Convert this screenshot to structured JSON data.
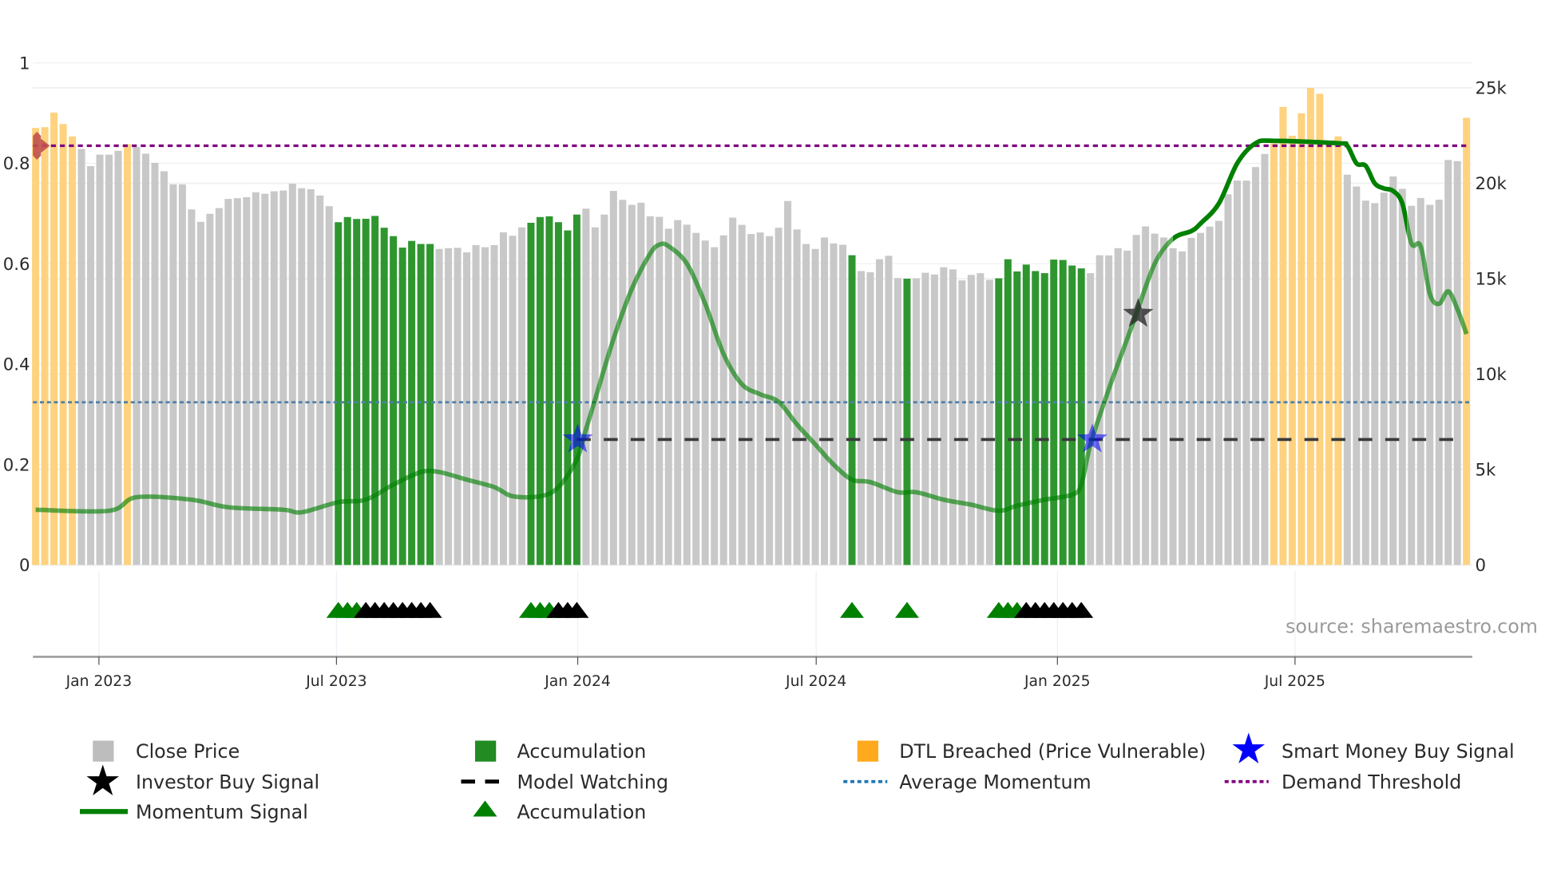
{
  "chart_data": {
    "type": "bar",
    "title": "",
    "left_axis": {
      "range": [
        0,
        1
      ],
      "ticks": [
        "0",
        "0.2",
        "0.4",
        "0.6",
        "0.8",
        "1"
      ],
      "tick_values": [
        0,
        0.2,
        0.4,
        0.6,
        0.8,
        1
      ]
    },
    "right_axis": {
      "range": [
        0,
        25
      ],
      "unit": "k",
      "ticks": [
        "0",
        "5k",
        "10k",
        "15k",
        "20k",
        "25k"
      ],
      "tick_values": [
        0,
        5,
        10,
        15,
        20,
        25
      ]
    },
    "x_axis": {
      "ticks": [
        {
          "label": "Jan 2023",
          "x": 7.9
        },
        {
          "label": "Jul 2023",
          "x": 33.8
        },
        {
          "label": "Jan 2024",
          "x": 60.1
        },
        {
          "label": "Jul 2024",
          "x": 86.1
        },
        {
          "label": "Jan 2025",
          "x": 112.4
        },
        {
          "label": "Jul 2025",
          "x": 138.3
        }
      ]
    },
    "close_price_k": [
      22.9,
      22.94,
      23.7,
      23.1,
      22.45,
      21.8,
      20.9,
      21.5,
      21.5,
      21.7,
      22.05,
      21.9,
      21.55,
      21.07,
      20.63,
      19.94,
      19.94,
      18.63,
      17.98,
      18.4,
      18.7,
      19.18,
      19.22,
      19.27,
      19.53,
      19.45,
      19.58,
      19.62,
      19.98,
      19.74,
      19.69,
      19.36,
      18.8,
      17.96,
      18.23,
      18.13,
      18.14,
      18.29,
      17.67,
      17.23,
      16.63,
      16.98,
      16.82,
      16.82,
      16.56,
      16.6,
      16.62,
      16.38,
      16.76,
      16.65,
      16.76,
      17.43,
      17.25,
      17.69,
      17.93,
      18.23,
      18.27,
      17.96,
      17.53,
      18.36,
      18.67,
      17.69,
      18.36,
      19.6,
      19.13,
      18.87,
      18.98,
      18.27,
      18.24,
      17.62,
      18.07,
      17.83,
      17.4,
      17.0,
      16.65,
      17.27,
      18.2,
      17.82,
      17.34,
      17.42,
      17.23,
      17.67,
      19.07,
      17.58,
      16.82,
      16.56,
      17.16,
      16.85,
      16.78,
      16.23,
      15.4,
      15.34,
      16.02,
      16.2,
      15.03,
      15.0,
      15.02,
      15.31,
      15.22,
      15.6,
      15.49,
      14.91,
      15.2,
      15.29,
      14.94,
      15.02,
      16.02,
      15.38,
      15.74,
      15.4,
      15.29,
      16.0,
      15.98,
      15.69,
      15.54,
      15.29,
      16.23,
      16.22,
      16.6,
      16.47,
      17.29,
      17.74,
      17.36,
      17.16,
      16.6,
      16.43,
      17.14,
      17.4,
      17.73,
      18.03,
      19.42,
      20.14,
      20.14,
      20.85,
      21.54,
      22.09,
      24.0,
      22.49,
      23.67,
      25.0,
      24.69,
      22.09,
      22.45,
      20.45,
      19.83,
      19.09,
      18.96,
      19.51,
      20.36,
      19.71,
      18.82,
      19.23,
      18.87,
      19.14,
      21.22,
      21.16,
      23.43
    ],
    "accumulation_bars": [
      34,
      35,
      36,
      37,
      38,
      39,
      40,
      41,
      42,
      43,
      44,
      55,
      56,
      57,
      58,
      59,
      60,
      90,
      96,
      106,
      107,
      108,
      109,
      110,
      111,
      112,
      113,
      114,
      115
    ],
    "dtl_breached_bars": [
      1,
      2,
      3,
      4,
      5,
      11,
      136,
      137,
      138,
      139,
      140,
      141,
      142,
      143,
      157
    ],
    "momentum_signal": [
      [
        1,
        0.11
      ],
      [
        9,
        0.108
      ],
      [
        12,
        0.135
      ],
      [
        18,
        0.13
      ],
      [
        22,
        0.115
      ],
      [
        28,
        0.11
      ],
      [
        30,
        0.105
      ],
      [
        34,
        0.125
      ],
      [
        37,
        0.13
      ],
      [
        40,
        0.16
      ],
      [
        43,
        0.185
      ],
      [
        45,
        0.185
      ],
      [
        48,
        0.17
      ],
      [
        51,
        0.155
      ],
      [
        53,
        0.137
      ],
      [
        56,
        0.137
      ],
      [
        58,
        0.155
      ],
      [
        60,
        0.21
      ],
      [
        61,
        0.27
      ],
      [
        62,
        0.33
      ],
      [
        64,
        0.45
      ],
      [
        66,
        0.55
      ],
      [
        68,
        0.62
      ],
      [
        69,
        0.638
      ],
      [
        70,
        0.635
      ],
      [
        72,
        0.6
      ],
      [
        74,
        0.52
      ],
      [
        76,
        0.42
      ],
      [
        78,
        0.36
      ],
      [
        80,
        0.34
      ],
      [
        82,
        0.325
      ],
      [
        84,
        0.28
      ],
      [
        86,
        0.24
      ],
      [
        88,
        0.2
      ],
      [
        90,
        0.17
      ],
      [
        92,
        0.165
      ],
      [
        95,
        0.145
      ],
      [
        97,
        0.145
      ],
      [
        100,
        0.13
      ],
      [
        103,
        0.12
      ],
      [
        106,
        0.108
      ],
      [
        108,
        0.118
      ],
      [
        111,
        0.13
      ],
      [
        114,
        0.14
      ],
      [
        115,
        0.16
      ],
      [
        116,
        0.24
      ],
      [
        118,
        0.35
      ],
      [
        120,
        0.45
      ],
      [
        121,
        0.5
      ],
      [
        123,
        0.6
      ],
      [
        125,
        0.65
      ],
      [
        127,
        0.665
      ],
      [
        128,
        0.68
      ],
      [
        130,
        0.72
      ],
      [
        132,
        0.8
      ],
      [
        134,
        0.84
      ],
      [
        136,
        0.845
      ],
      [
        143,
        0.84
      ],
      [
        144,
        0.835
      ],
      [
        145,
        0.8
      ],
      [
        146,
        0.795
      ],
      [
        147,
        0.76
      ],
      [
        148,
        0.75
      ],
      [
        149,
        0.745
      ],
      [
        150,
        0.72
      ],
      [
        151,
        0.64
      ],
      [
        152,
        0.635
      ],
      [
        153,
        0.54
      ],
      [
        154,
        0.52
      ],
      [
        155,
        0.545
      ],
      [
        156,
        0.51
      ],
      [
        157,
        0.46
      ]
    ],
    "average_momentum": 0.324,
    "demand_threshold": 0.835,
    "model_watching": {
      "value": 0.25,
      "from": 60,
      "to": 156
    },
    "smart_money_buy_signals": [
      [
        60.1,
        0.25
      ],
      [
        116.2,
        0.25
      ]
    ],
    "investor_buy_signals": [
      [
        121.2,
        0.5
      ]
    ],
    "accumulation_markers_green": [
      34,
      35,
      36,
      55,
      56,
      57,
      90,
      96,
      106,
      107,
      108
    ],
    "accumulation_markers_black": [
      37,
      38,
      39,
      40,
      41,
      42,
      43,
      44,
      58,
      59,
      60,
      109,
      110,
      111,
      112,
      113,
      114,
      115
    ],
    "legend": {
      "placement": "bottom",
      "items": [
        "Close Price",
        "Accumulation",
        "DTL Breached (Price Vulnerable)",
        "Smart Money Buy Signal",
        "Investor Buy Signal",
        "Model Watching",
        "Average Momentum",
        "Demand Threshold",
        "Momentum Signal",
        "Accumulation"
      ]
    },
    "annotation": "source: sharemaestro.com"
  },
  "colors": {
    "close": "#c8c8c8",
    "accumulation": "#2f962f",
    "dtl": "#fed27f",
    "smart_money": "#0000ff",
    "investor": "#000000",
    "momentum": "#008000",
    "avg_momentum": "#4f7fa8",
    "threshold": "#800080"
  }
}
